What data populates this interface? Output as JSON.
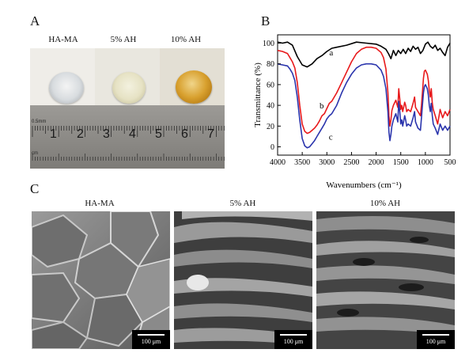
{
  "panels": {
    "a": {
      "letter": "A",
      "labels": [
        "HA-MA",
        "5% AH",
        "10% AH"
      ],
      "ruler_numbers": [
        "1",
        "2",
        "3",
        "4",
        "5",
        "6",
        "7"
      ],
      "ruler_small_text": [
        "0.5mm",
        "cm"
      ]
    },
    "b": {
      "letter": "B"
    },
    "c": {
      "letter": "C",
      "labels": [
        "HA-MA",
        "5% AH",
        "10% AH"
      ],
      "scale_bar": "100 μm"
    }
  },
  "chart_data": {
    "type": "line",
    "xlabel": "Wavenumbers (cm⁻¹)",
    "ylabel": "Transmittance (%)",
    "xlim": [
      4000,
      500
    ],
    "ylim": [
      -8,
      108
    ],
    "x_ticks": [
      4000,
      3500,
      3000,
      2500,
      2000,
      1500,
      1000,
      500
    ],
    "y_ticks": [
      0,
      20,
      40,
      60,
      80,
      100
    ],
    "series": [
      {
        "name": "a",
        "color": "#000000",
        "x": [
          4000,
          3900,
          3800,
          3700,
          3600,
          3500,
          3400,
          3300,
          3200,
          3100,
          3000,
          2900,
          2800,
          2600,
          2400,
          2200,
          2000,
          1900,
          1800,
          1750,
          1700,
          1650,
          1600,
          1550,
          1500,
          1450,
          1400,
          1350,
          1300,
          1250,
          1200,
          1150,
          1100,
          1050,
          1000,
          950,
          900,
          850,
          800,
          750,
          700,
          650,
          600,
          550,
          500
        ],
        "values": [
          101,
          100,
          101,
          98,
          87,
          79,
          77,
          80,
          85,
          88,
          92,
          95,
          96,
          98,
          101,
          100,
          99,
          97,
          94,
          90,
          85,
          93,
          88,
          93,
          90,
          94,
          90,
          95,
          92,
          97,
          94,
          96,
          90,
          93,
          99,
          101,
          97,
          95,
          98,
          93,
          95,
          91,
          88,
          96,
          100
        ]
      },
      {
        "name": "b",
        "color": "#e8191b",
        "x": [
          4000,
          3900,
          3800,
          3750,
          3700,
          3650,
          3600,
          3550,
          3500,
          3450,
          3400,
          3350,
          3300,
          3250,
          3200,
          3150,
          3100,
          3050,
          3000,
          2950,
          2900,
          2800,
          2700,
          2600,
          2500,
          2400,
          2300,
          2200,
          2100,
          2000,
          1900,
          1850,
          1800,
          1760,
          1740,
          1720,
          1700,
          1680,
          1650,
          1600,
          1560,
          1540,
          1520,
          1500,
          1480,
          1460,
          1420,
          1400,
          1380,
          1350,
          1300,
          1250,
          1220,
          1200,
          1150,
          1100,
          1080,
          1060,
          1040,
          1020,
          1000,
          960,
          940,
          920,
          900,
          880,
          860,
          840,
          800,
          750,
          700,
          650,
          600,
          550,
          500
        ],
        "values": [
          93,
          92,
          90,
          86,
          82,
          76,
          62,
          40,
          22,
          15,
          13,
          14,
          16,
          18,
          21,
          25,
          30,
          32,
          37,
          42,
          44,
          52,
          62,
          72,
          82,
          90,
          94,
          96,
          96,
          95,
          91,
          86,
          75,
          52,
          30,
          20,
          26,
          35,
          40,
          45,
          38,
          56,
          46,
          36,
          40,
          34,
          43,
          40,
          34,
          36,
          34,
          42,
          48,
          38,
          34,
          30,
          40,
          52,
          66,
          73,
          74,
          70,
          64,
          54,
          48,
          56,
          42,
          36,
          30,
          22,
          36,
          28,
          34,
          30,
          36
        ]
      },
      {
        "name": "c",
        "color": "#2b35ad",
        "x": [
          4000,
          3900,
          3800,
          3750,
          3700,
          3650,
          3600,
          3550,
          3500,
          3450,
          3400,
          3350,
          3300,
          3250,
          3200,
          3150,
          3100,
          3050,
          3000,
          2950,
          2900,
          2800,
          2700,
          2600,
          2500,
          2400,
          2300,
          2200,
          2100,
          2000,
          1900,
          1850,
          1800,
          1760,
          1740,
          1720,
          1700,
          1680,
          1650,
          1600,
          1560,
          1540,
          1520,
          1500,
          1480,
          1460,
          1420,
          1400,
          1380,
          1350,
          1300,
          1250,
          1220,
          1200,
          1150,
          1100,
          1080,
          1060,
          1040,
          1020,
          1000,
          960,
          940,
          920,
          900,
          880,
          860,
          840,
          800,
          750,
          700,
          650,
          600,
          550,
          500
        ],
        "values": [
          80,
          79,
          78,
          75,
          71,
          64,
          48,
          26,
          8,
          1,
          -1,
          0,
          3,
          6,
          10,
          14,
          18,
          22,
          27,
          30,
          32,
          40,
          52,
          62,
          70,
          76,
          79,
          80,
          80,
          79,
          74,
          68,
          56,
          34,
          14,
          6,
          12,
          20,
          26,
          32,
          24,
          44,
          34,
          22,
          26,
          20,
          30,
          26,
          20,
          22,
          20,
          28,
          34,
          24,
          18,
          16,
          28,
          40,
          52,
          58,
          60,
          56,
          50,
          40,
          34,
          42,
          30,
          22,
          18,
          12,
          22,
          16,
          20,
          16,
          20
        ]
      }
    ],
    "series_labels": [
      {
        "name": "a",
        "x": 2950,
        "y": 88
      },
      {
        "name": "b",
        "x": 3150,
        "y": 37
      },
      {
        "name": "c",
        "x": 2960,
        "y": 7
      }
    ]
  },
  "colors": {
    "sem_dark": "#3a3a3a",
    "sem_light": "#a8a8a8",
    "amber": "#d8a02e"
  }
}
